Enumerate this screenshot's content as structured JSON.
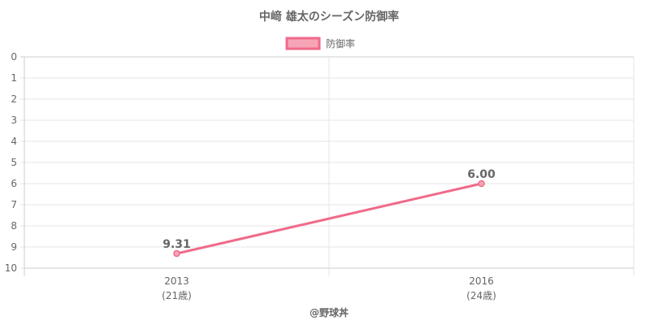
{
  "chart_data": {
    "type": "line",
    "title": "中﨑 雄太のシーズン防御率",
    "legend_position": "top",
    "grid": true,
    "y_reversed": true,
    "ylim": [
      0,
      10
    ],
    "y_ticks": [
      "0",
      "1",
      "2",
      "3",
      "4",
      "5",
      "6",
      "7",
      "8",
      "9",
      "10"
    ],
    "categories": [
      "2013",
      "2016"
    ],
    "category_sublabels": [
      "(21歳)",
      "(24歳)"
    ],
    "series": [
      {
        "name": "防御率",
        "values": [
          9.31,
          6.0
        ],
        "labels": [
          "9.31",
          "6.00"
        ],
        "color": "#f06a8a",
        "fill": "#f6a5b7"
      }
    ],
    "footer": "@野球丼"
  }
}
